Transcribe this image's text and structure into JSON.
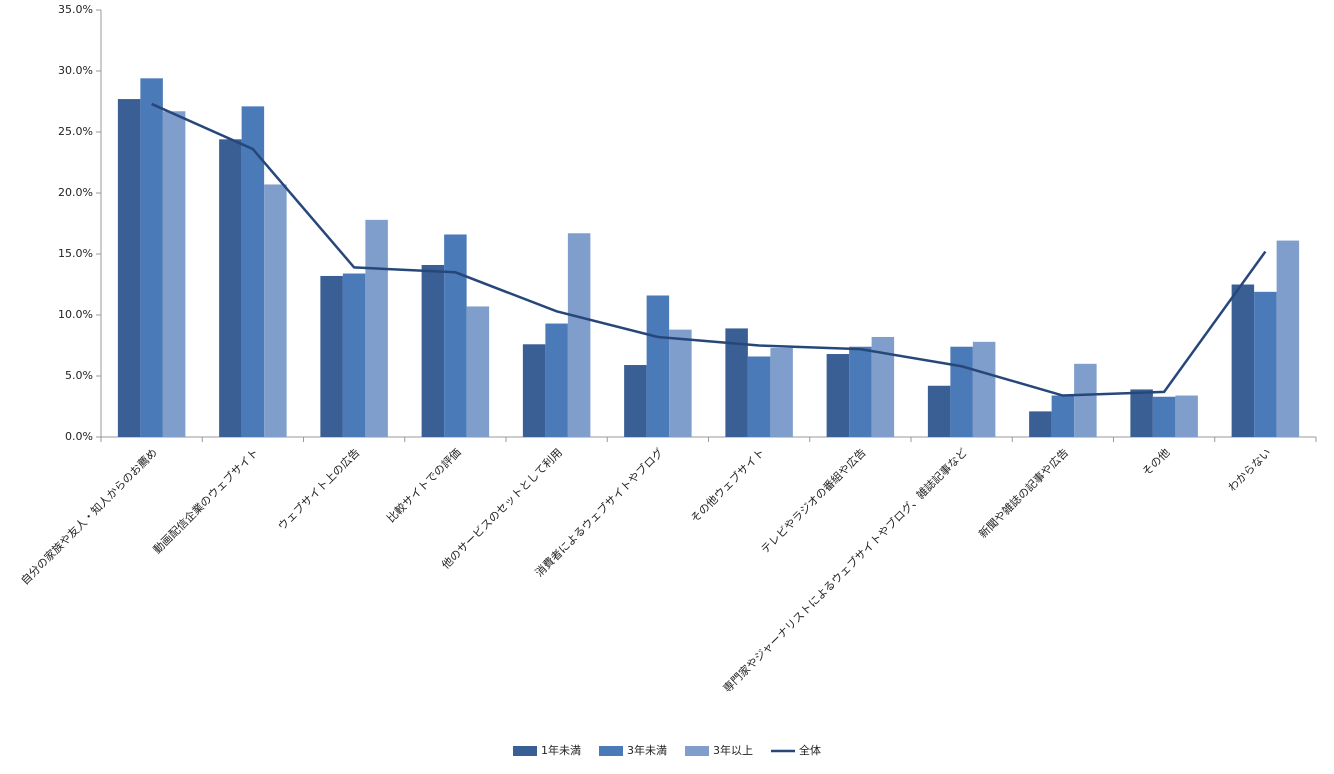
{
  "chart_data": {
    "type": "bar",
    "categories": [
      "自分の家族や友人・知人からのお薦め",
      "動画配信企業のウェブサイト",
      "ウェブサイト上の広告",
      "比較サイトでの評価",
      "他のサービスのセットとして利用",
      "消費者によるウェブサイトやブログ",
      "その他ウェブサイト",
      "テレビやラジオの番組や広告",
      "専門家やジャーナリストによるウェブサイトやブログ、雑誌記事など",
      "新聞や雑誌の記事や広告",
      "その他",
      "わからない"
    ],
    "series": [
      {
        "name": "1年未満",
        "type": "bar",
        "color": "#3a5f94",
        "values": [
          27.7,
          24.4,
          13.2,
          14.1,
          7.6,
          5.9,
          8.9,
          6.8,
          4.2,
          2.1,
          3.9,
          12.5
        ]
      },
      {
        "name": "3年未満",
        "type": "bar",
        "color": "#4a7ab8",
        "values": [
          29.4,
          27.1,
          13.4,
          16.6,
          9.3,
          11.6,
          6.6,
          7.4,
          7.4,
          3.4,
          3.3,
          11.9
        ]
      },
      {
        "name": "3年以上",
        "type": "bar",
        "color": "#7f9ecb",
        "values": [
          26.7,
          20.7,
          17.8,
          10.7,
          16.7,
          8.8,
          7.3,
          8.2,
          7.8,
          6.0,
          3.4,
          16.1
        ]
      },
      {
        "name": "全体",
        "type": "line",
        "color": "#27477a",
        "values": [
          27.3,
          23.6,
          13.9,
          13.5,
          10.3,
          8.2,
          7.5,
          7.2,
          5.8,
          3.4,
          3.7,
          15.2
        ]
      }
    ],
    "ylim": [
      0,
      35
    ],
    "yticks": [
      {
        "value": 0,
        "label": "0.0%"
      },
      {
        "value": 5,
        "label": "5.0%"
      },
      {
        "value": 10,
        "label": "10.0%"
      },
      {
        "value": 15,
        "label": "15.0%"
      },
      {
        "value": 20,
        "label": "20.0%"
      },
      {
        "value": 25,
        "label": "25.0%"
      },
      {
        "value": 30,
        "label": "30.0%"
      },
      {
        "value": 35,
        "label": "35.0%"
      }
    ],
    "grid": false,
    "legend": "bottom"
  }
}
